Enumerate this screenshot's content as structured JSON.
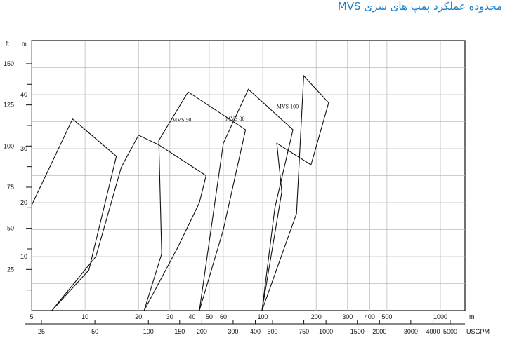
{
  "title": "محدوده عملکرد پمپ های سری MVS",
  "chart_data": {
    "type": "line",
    "title": "محدوده عملکرد پمپ های سری MVS",
    "x_unit_top": "m",
    "x_unit_bottom": "USGPM",
    "y_unit_left_outer": "ft",
    "y_unit_left_inner": "m",
    "x_scale": "log",
    "grid": true,
    "x_major_m3h": [
      5,
      10,
      20,
      30,
      40,
      50,
      60,
      100,
      200,
      300,
      400,
      500,
      1000
    ],
    "x_ticks_m3h_labels": [
      "5",
      "10",
      "20",
      "30",
      "40",
      "50",
      "60",
      "100",
      "200",
      "300",
      "400",
      "500",
      "1000"
    ],
    "x_ticks_usgpm": [
      25,
      50,
      100,
      150,
      200,
      300,
      400,
      500,
      750,
      1000,
      1500,
      2000,
      3000,
      4000,
      5000
    ],
    "x_ticks_usgpm_labels": [
      "25",
      "50",
      "100",
      "150",
      "200",
      "300",
      "400",
      "500",
      "750",
      "1000",
      "1500",
      "2000",
      "3000",
      "4000",
      "5000"
    ],
    "y_ticks_m": [
      10,
      20,
      30,
      40
    ],
    "y_ticks_m_labels": [
      "10",
      "20",
      "30",
      "40"
    ],
    "y_ticks_ft": [
      25,
      50,
      75,
      100,
      125,
      150
    ],
    "y_ticks_ft_labels": [
      "25",
      "50",
      "75",
      "100",
      "125",
      "150"
    ],
    "ylim_m": [
      0,
      50
    ],
    "series": [
      {
        "name": "",
        "label_at": null,
        "points": [
          [
            5,
            19.5
          ],
          [
            8.5,
            35.5
          ],
          [
            15,
            28.6
          ],
          [
            10.5,
            7.5
          ],
          [
            6.5,
            0
          ]
        ]
      },
      {
        "name": "",
        "label_at": null,
        "points": [
          [
            6.5,
            0
          ],
          [
            11.5,
            10.0
          ],
          [
            16,
            26.6
          ],
          [
            20,
            32.5
          ],
          [
            26,
            30.7
          ],
          [
            48,
            25.0
          ],
          [
            44,
            20.0
          ],
          [
            33,
            11.5
          ],
          [
            21.5,
            0
          ]
        ]
      },
      {
        "name": "MVS 50",
        "label_at": [
          35,
          35.0
        ],
        "points": [
          [
            21.5,
            0
          ],
          [
            27,
            10.5
          ],
          [
            26,
            31.5
          ],
          [
            38,
            40.5
          ],
          [
            80,
            33.5
          ],
          [
            60,
            15.0
          ],
          [
            44,
            0
          ]
        ]
      },
      {
        "name": "MVS 80",
        "label_at": [
          70,
          35.2
        ],
        "points": [
          [
            61,
            0
          ],
          [
            44,
            0
          ],
          [
            60,
            31.0
          ],
          [
            83,
            41.0
          ],
          [
            148,
            33.5
          ],
          [
            117,
            19.0
          ],
          [
            99,
            0
          ]
        ]
      },
      {
        "name": "MVS 100",
        "label_at": [
          138,
          37.5
        ],
        "points": [
          [
            99,
            0
          ],
          [
            155,
            18.0
          ],
          [
            170,
            43.5
          ],
          [
            235,
            38.5
          ],
          [
            187,
            27.0
          ],
          [
            120,
            31.0
          ],
          [
            128,
            22.0
          ],
          [
            99,
            0
          ]
        ]
      }
    ]
  }
}
